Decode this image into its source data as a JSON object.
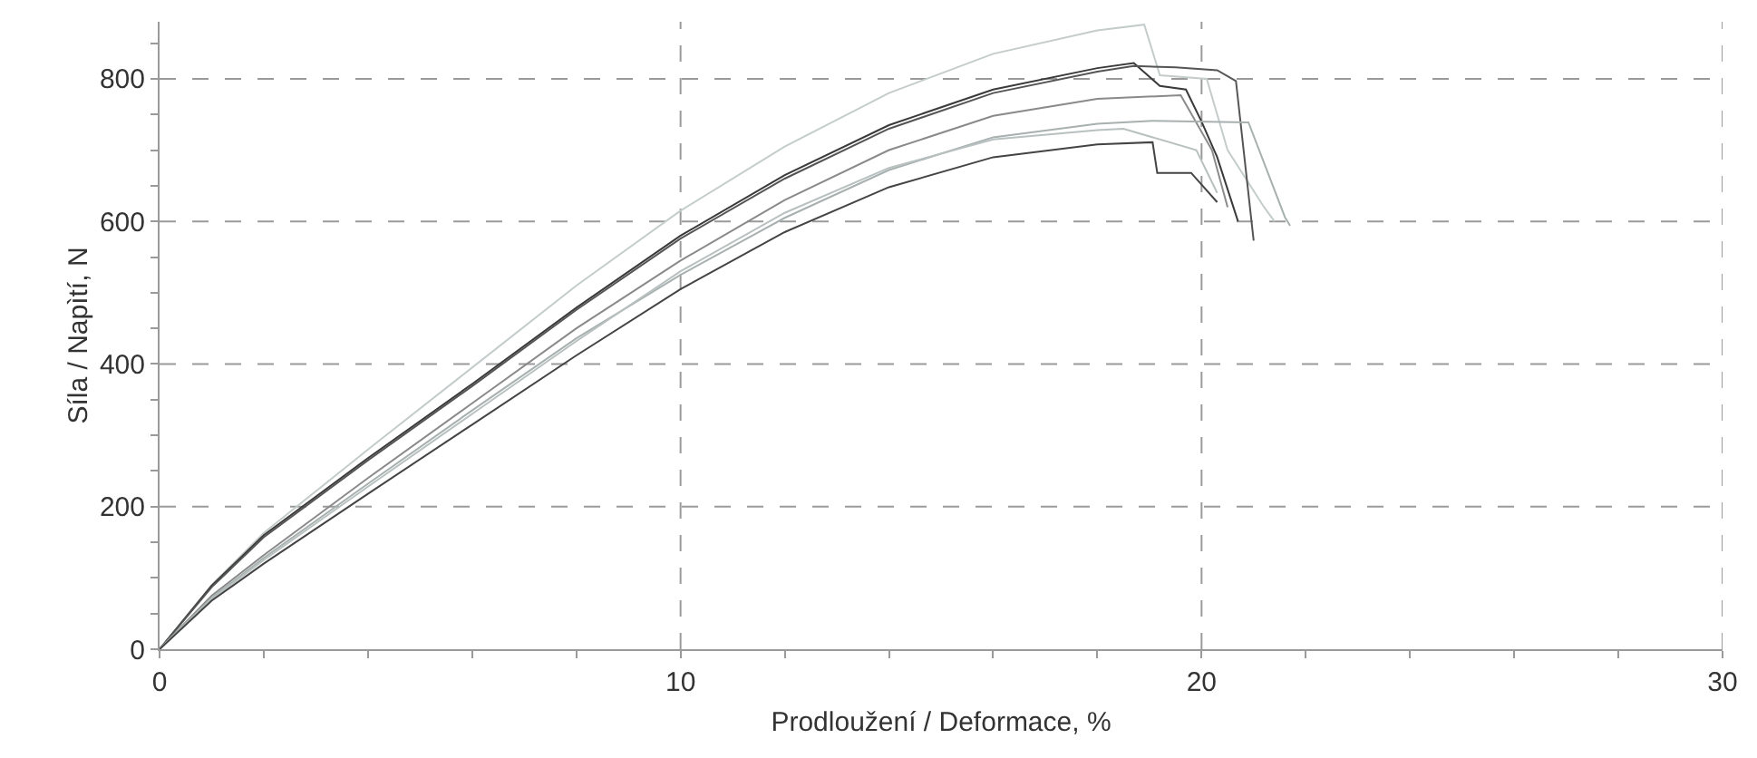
{
  "chart_data": {
    "type": "line",
    "xlabel": "Prodloužení / Deformace, %",
    "ylabel": "Síla / Napìtí, N",
    "xlim": [
      0,
      30
    ],
    "ylim": [
      0,
      880
    ],
    "xticks": [
      0,
      {
        "value": 2,
        "label": null
      },
      {
        "value": 4,
        "label": null
      },
      {
        "value": 6,
        "label": null
      },
      {
        "value": 8,
        "label": null
      },
      10,
      {
        "value": 12,
        "label": null
      },
      {
        "value": 14,
        "label": null
      },
      {
        "value": 16,
        "label": null
      },
      {
        "value": 18,
        "label": null
      },
      20,
      {
        "value": 22,
        "label": null
      },
      {
        "value": 24,
        "label": null
      },
      {
        "value": 26,
        "label": null
      },
      {
        "value": 28,
        "label": null
      },
      30
    ],
    "yticks": [
      0,
      {
        "value": 50,
        "label": null
      },
      {
        "value": 100,
        "label": null
      },
      {
        "value": 150,
        "label": null
      },
      200,
      {
        "value": 250,
        "label": null
      },
      {
        "value": 300,
        "label": null
      },
      {
        "value": 350,
        "label": null
      },
      400,
      {
        "value": 450,
        "label": null
      },
      {
        "value": 500,
        "label": null
      },
      {
        "value": 550,
        "label": null
      },
      600,
      {
        "value": 650,
        "label": null
      },
      {
        "value": 700,
        "label": null
      },
      {
        "value": 750,
        "label": null
      },
      800,
      {
        "value": 850,
        "label": null
      }
    ],
    "grid": true,
    "marker": "none",
    "line_style": "solid",
    "series": [
      {
        "color": "#c4cccc",
        "x": [
          0,
          1,
          2,
          4,
          6,
          8,
          10,
          12,
          14,
          16,
          18,
          18.9,
          19.2,
          20.1,
          20.5,
          21.2,
          21.4
        ],
        "values": [
          0,
          90,
          163,
          280,
          395,
          510,
          615,
          705,
          780,
          835,
          868,
          876,
          805,
          800,
          700,
          620,
          600
        ]
      },
      {
        "color": "#3a3a3a",
        "x": [
          0,
          1,
          2,
          4,
          6,
          8,
          10,
          12,
          14,
          16,
          18,
          18.7,
          19.2,
          19.7,
          20.0,
          20.3,
          20.7
        ],
        "values": [
          0,
          89,
          160,
          268,
          372,
          479,
          580,
          665,
          735,
          785,
          815,
          822,
          790,
          785,
          740,
          690,
          600
        ]
      },
      {
        "color": "#555555",
        "x": [
          0,
          1,
          2,
          4,
          6,
          8,
          10,
          12,
          14,
          16,
          18,
          18.7,
          19.5,
          20.3,
          20.66,
          21.0
        ],
        "values": [
          0,
          87,
          157,
          265,
          369,
          476,
          576,
          660,
          730,
          780,
          810,
          818,
          816,
          812,
          797,
          573
        ]
      },
      {
        "color": "#8a8a8a",
        "x": [
          0,
          1,
          2,
          4,
          6,
          8,
          10,
          12,
          14,
          16,
          18,
          19.6,
          20.2,
          20.5
        ],
        "values": [
          0,
          75,
          132,
          240,
          345,
          450,
          545,
          630,
          700,
          748,
          772,
          777,
          700,
          620
        ]
      },
      {
        "color": "#a8b0b0",
        "x": [
          0,
          1,
          2,
          4,
          6,
          8,
          10,
          12,
          14,
          16,
          18,
          19.06,
          20.9,
          21.6,
          21.7
        ],
        "values": [
          0,
          72,
          128,
          232,
          335,
          436,
          525,
          605,
          672,
          718,
          737,
          741,
          739,
          606,
          594
        ]
      },
      {
        "color": "#b8c0c0",
        "x": [
          0,
          1,
          2,
          4,
          6,
          8,
          10,
          12,
          14,
          16,
          18,
          18.5,
          19.9,
          20.3
        ],
        "values": [
          0,
          70,
          125,
          228,
          330,
          432,
          530,
          612,
          675,
          715,
          728,
          730,
          700,
          640
        ]
      },
      {
        "color": "#444444",
        "x": [
          0,
          1,
          2,
          4,
          6,
          8,
          10,
          12,
          14,
          16,
          18,
          19.06,
          19.15,
          19.8,
          20.3
        ],
        "values": [
          0,
          68,
          120,
          218,
          315,
          412,
          505,
          585,
          648,
          690,
          708,
          711,
          668,
          668,
          627
        ]
      }
    ]
  }
}
